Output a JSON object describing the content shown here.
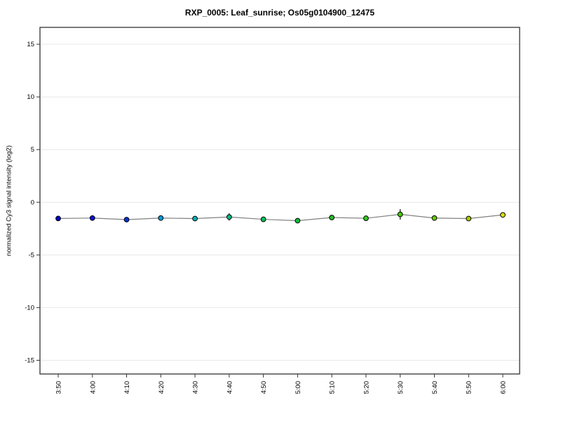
{
  "chart_data": {
    "type": "line",
    "title": "RXP_0005: Leaf_sunrise; Os05g0104900_12475",
    "ylabel": "normalized Cy3 signal intensity (log2)",
    "xlabel": "",
    "ylim": [
      -16.3,
      16.6
    ],
    "yticks": [
      15,
      10,
      5,
      0,
      -5,
      -10,
      -15
    ],
    "grid": "horizontal-light",
    "legend": "none",
    "categories": [
      "3:50",
      "4:00",
      "4:10",
      "4:20",
      "4:30",
      "4:40",
      "4:50",
      "5:00",
      "5:10",
      "5:20",
      "5:30",
      "5:40",
      "5:50",
      "6:00"
    ],
    "series": [
      {
        "name": "normalized Cy3 signal intensity (log2)",
        "values": [
          -1.54,
          -1.5,
          -1.65,
          -1.5,
          -1.55,
          -1.4,
          -1.62,
          -1.75,
          -1.45,
          -1.52,
          -1.15,
          -1.5,
          -1.55,
          -1.2
        ],
        "errors": [
          0.08,
          0.15,
          0.12,
          0.12,
          0.1,
          0.35,
          0.15,
          0.1,
          0.15,
          0.12,
          0.5,
          0.15,
          0.1,
          0.12
        ],
        "point_colors": [
          "#0000CC",
          "#0011DD",
          "#0033DD",
          "#0099DD",
          "#00B2B2",
          "#00BB88",
          "#00C060",
          "#0FBE3C",
          "#22BB22",
          "#33CC22",
          "#44CC00",
          "#66CC00",
          "#AACC00",
          "#DDDD00"
        ]
      }
    ],
    "colors": {
      "axis": "#333333",
      "grid": "#e8e8e8",
      "series_line": "#808080",
      "error_bar": "#000000",
      "point_stroke": "#000000",
      "background": "#ffffff"
    }
  }
}
